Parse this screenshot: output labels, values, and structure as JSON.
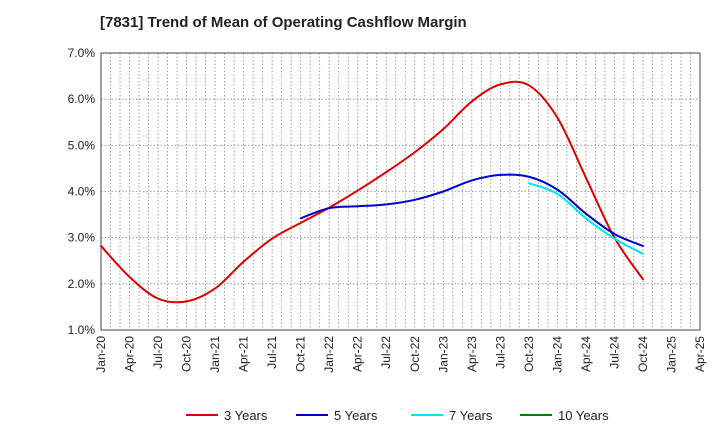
{
  "chart_data": {
    "type": "line",
    "title": "[7831]  Trend of Mean of Operating Cashflow Margin",
    "xlabel": "",
    "ylabel": "",
    "y_unit": "%",
    "ylim": [
      1.0,
      7.0
    ],
    "y_ticks": [
      "1.0%",
      "2.0%",
      "3.0%",
      "4.0%",
      "5.0%",
      "6.0%",
      "7.0%"
    ],
    "x_ticks": [
      "Jan-20",
      "Apr-20",
      "Jul-20",
      "Oct-20",
      "Jan-21",
      "Apr-21",
      "Jul-21",
      "Oct-21",
      "Jan-22",
      "Apr-22",
      "Jul-22",
      "Oct-22",
      "Jan-23",
      "Apr-23",
      "Jul-23",
      "Oct-23",
      "Jan-24",
      "Apr-24",
      "Jul-24",
      "Oct-24",
      "Jan-25",
      "Apr-25"
    ],
    "grid": true,
    "legend_position": "bottom",
    "series": [
      {
        "name": "3 Years",
        "color": "#dd0000",
        "x": [
          "Jan-20",
          "Apr-20",
          "Jul-20",
          "Oct-20",
          "Jan-21",
          "Apr-21",
          "Jul-21",
          "Oct-21",
          "Jan-22",
          "Apr-22",
          "Jul-22",
          "Oct-22",
          "Jan-23",
          "Apr-23",
          "Jul-23",
          "Oct-23",
          "Jan-24",
          "Apr-24",
          "Jul-24",
          "Oct-24"
        ],
        "values": [
          2.82,
          2.15,
          1.68,
          1.62,
          1.9,
          2.48,
          2.98,
          3.32,
          3.65,
          4.02,
          4.42,
          4.85,
          5.35,
          5.95,
          6.32,
          6.3,
          5.6,
          4.3,
          3.0,
          2.1
        ]
      },
      {
        "name": "5 Years",
        "color": "#0000cc",
        "x": [
          "Oct-21",
          "Jan-22",
          "Apr-22",
          "Jul-22",
          "Oct-22",
          "Jan-23",
          "Apr-23",
          "Jul-23",
          "Oct-23",
          "Jan-24",
          "Apr-24",
          "Jul-24",
          "Oct-24"
        ],
        "values": [
          3.42,
          3.64,
          3.68,
          3.72,
          3.82,
          4.0,
          4.24,
          4.36,
          4.32,
          4.04,
          3.52,
          3.08,
          2.82
        ]
      },
      {
        "name": "7 Years",
        "color": "#00e5ee",
        "x": [
          "Oct-23",
          "Jan-24",
          "Apr-24",
          "Jul-24",
          "Oct-24"
        ],
        "values": [
          4.18,
          3.95,
          3.42,
          2.98,
          2.65
        ]
      },
      {
        "name": "10 Years",
        "color": "#008000",
        "x": [],
        "values": []
      }
    ]
  }
}
